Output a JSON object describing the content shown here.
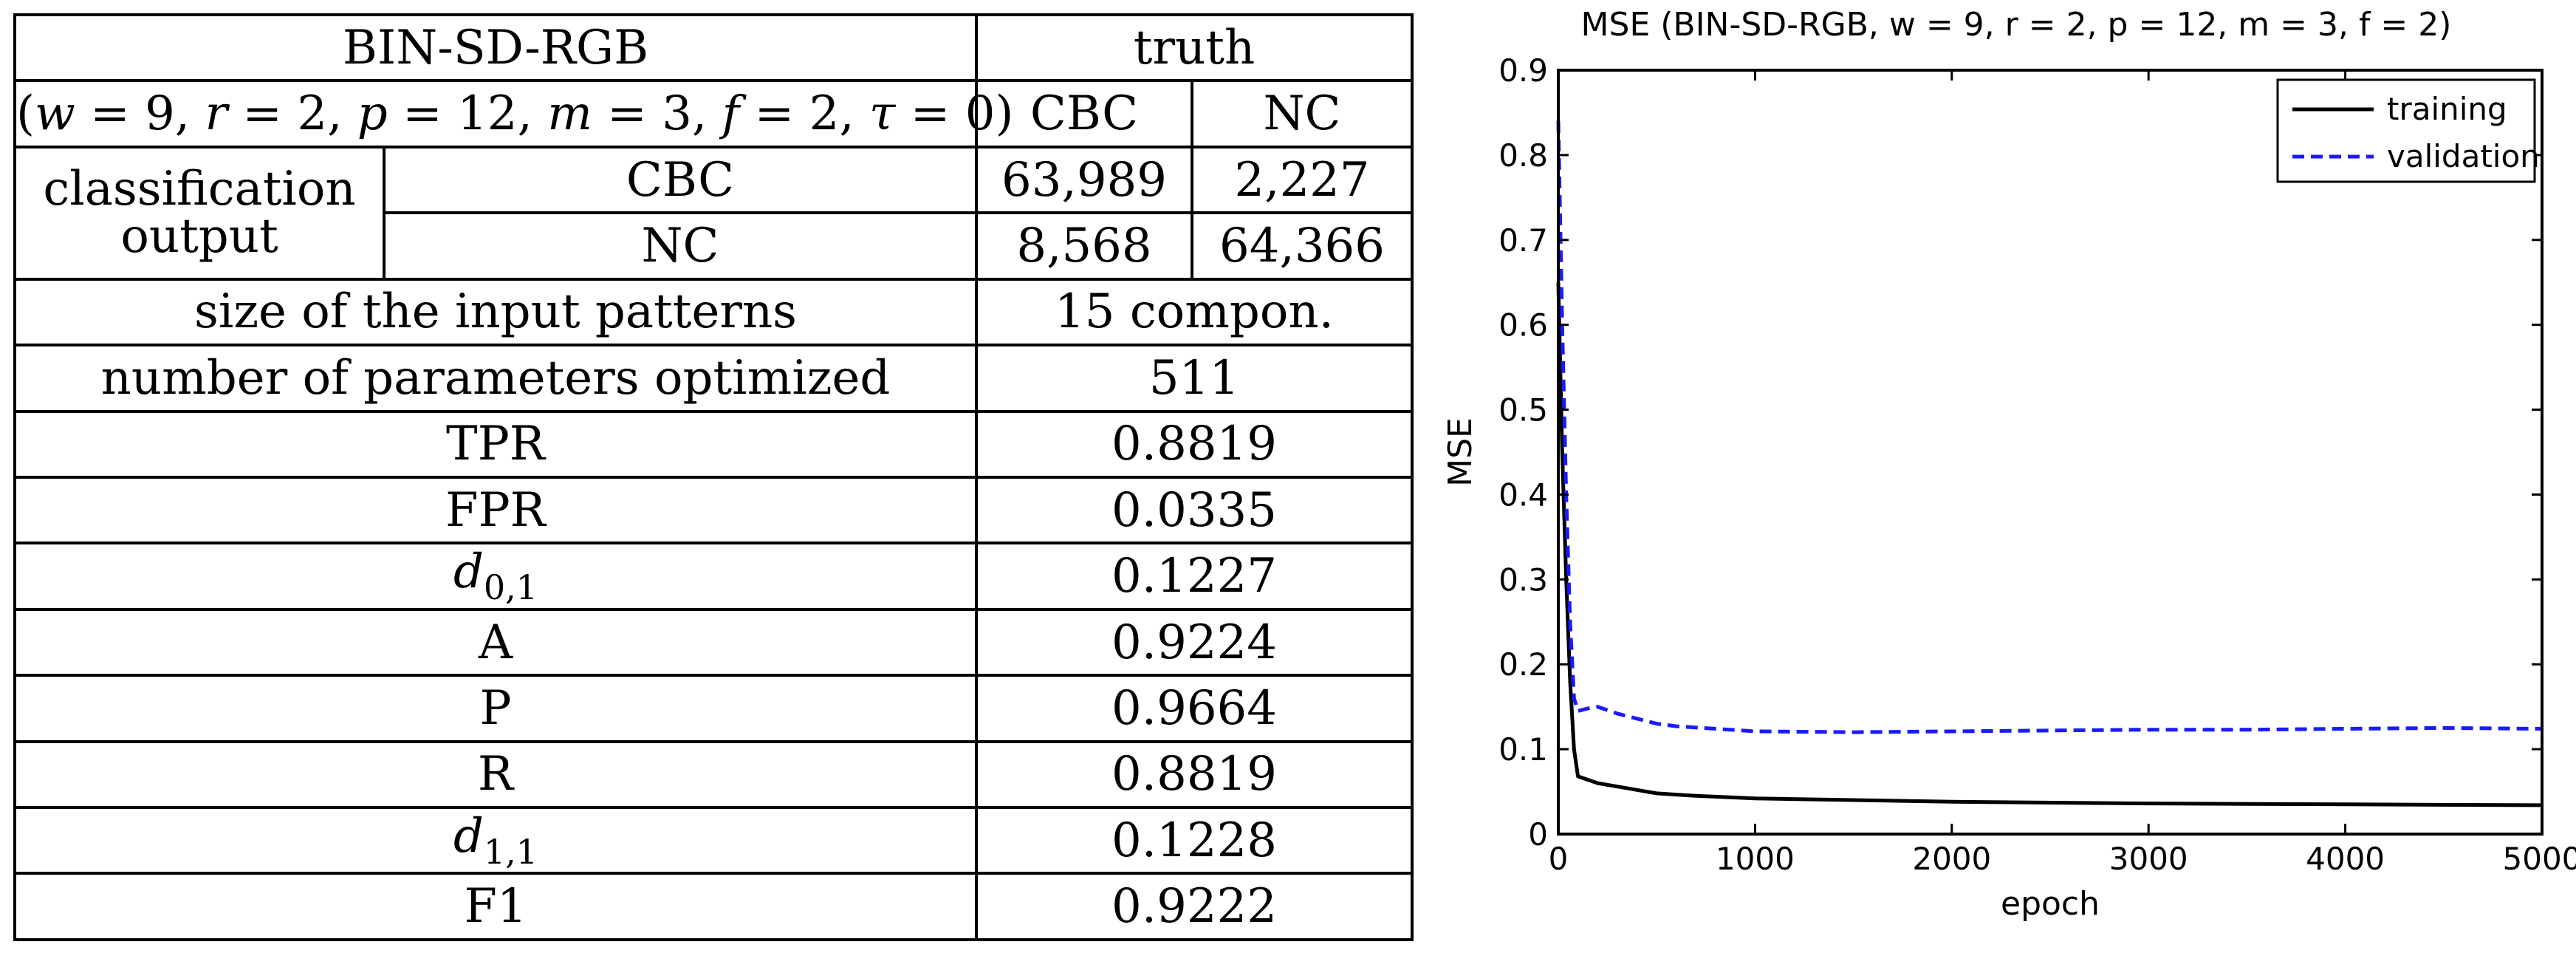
{
  "table": {
    "header_title": "BIN-SD-RGB",
    "header_params": {
      "p_open": "(",
      "w_sym": "w",
      "w_val": " = 9, ",
      "r_sym": "r",
      "r_val": " = 2, ",
      "p_sym": "p",
      "p_val": " = 12, ",
      "m_sym": "m",
      "m_val": " = 3, ",
      "f_sym": "f",
      "f_val": " = 2, ",
      "tau_sym": "τ",
      "tau_val": " = 0",
      "p_close": ")"
    },
    "truth_label": "truth",
    "col_cbc": "CBC",
    "col_nc": "NC",
    "classification_output_line1": "classification",
    "classification_output_line2": "output",
    "row_cbc_label": "CBC",
    "row_nc_label": "NC",
    "cbc_cbc": "63,989",
    "cbc_nc": "2,227",
    "nc_cbc": "8,568",
    "nc_nc": "64,366",
    "metrics": [
      {
        "label": "size of the input patterns",
        "value": "15 compon."
      },
      {
        "label": "number of parameters optimized",
        "value": "511"
      },
      {
        "label": "TPR",
        "value": "0.8819"
      },
      {
        "label": "FPR",
        "value": "0.0335"
      },
      {
        "label_main": "d",
        "label_sub": "0,1",
        "value": "0.1227"
      },
      {
        "label": "A",
        "value": "0.9224"
      },
      {
        "label": "P",
        "value": "0.9664"
      },
      {
        "label": "R",
        "value": "0.8819"
      },
      {
        "label_main": "d",
        "label_sub": "1,1",
        "value": "0.1228"
      },
      {
        "label": "F1",
        "value": "0.9222"
      }
    ]
  },
  "chart_data": {
    "type": "line",
    "title": "MSE (BIN-SD-RGB, w = 9, r = 2, p = 12, m = 3, f = 2)",
    "xlabel": "epoch",
    "ylabel": "MSE",
    "xlim": [
      0,
      5000
    ],
    "ylim": [
      0,
      0.9
    ],
    "xticks": [
      0,
      1000,
      2000,
      3000,
      4000,
      5000
    ],
    "yticks": [
      0,
      0.1,
      0.2,
      0.3,
      0.4,
      0.5,
      0.6,
      0.7,
      0.8,
      0.9
    ],
    "xtick_labels": [
      "0",
      "1000",
      "2000",
      "3000",
      "4000",
      "5000"
    ],
    "ytick_labels": [
      "0",
      "0.1",
      "0.2",
      "0.3",
      "0.4",
      "0.5",
      "0.6",
      "0.7",
      "0.8",
      "0.9"
    ],
    "grid": false,
    "legend_position": "top-right",
    "series": [
      {
        "name": "training",
        "color": "#000000",
        "style": "solid",
        "x": [
          0,
          20,
          40,
          60,
          80,
          100,
          150,
          200,
          300,
          400,
          500,
          700,
          1000,
          1500,
          2000,
          3000,
          4000,
          5000
        ],
        "y": [
          0.65,
          0.45,
          0.3,
          0.18,
          0.1,
          0.068,
          0.064,
          0.06,
          0.056,
          0.052,
          0.048,
          0.045,
          0.042,
          0.04,
          0.038,
          0.036,
          0.035,
          0.034
        ]
      },
      {
        "name": "validation",
        "color": "#1a1aff",
        "style": "dashed",
        "x": [
          0,
          20,
          40,
          60,
          80,
          100,
          150,
          200,
          300,
          400,
          500,
          600,
          800,
          1000,
          1500,
          2000,
          2500,
          3000,
          3500,
          4000,
          4500,
          5000
        ],
        "y": [
          0.84,
          0.6,
          0.4,
          0.25,
          0.16,
          0.145,
          0.148,
          0.15,
          0.142,
          0.136,
          0.13,
          0.127,
          0.124,
          0.121,
          0.12,
          0.121,
          0.122,
          0.123,
          0.123,
          0.124,
          0.125,
          0.124
        ]
      }
    ]
  }
}
